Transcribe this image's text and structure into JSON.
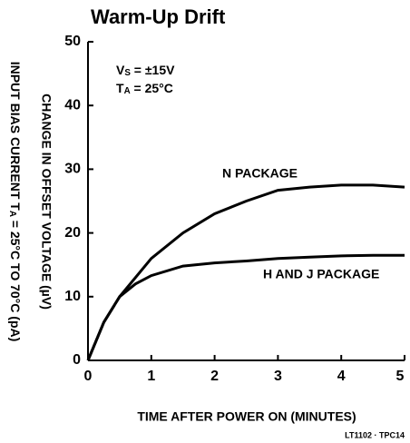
{
  "chart_data": {
    "type": "line",
    "title": "Warm-Up Drift",
    "xlabel": "TIME AFTER POWER ON (MINUTES)",
    "ylabel": "CHANGE IN OFFSET VOLTAGE (µV)",
    "ylabel_outer": {
      "main": "INPUT BIAS CURRENT T",
      "sub": "A",
      "rest": " = 25°C TO 70°C (pA)"
    },
    "annotations": [
      {
        "main": "V",
        "sub": "S",
        "rest": " = ±15V"
      },
      {
        "main": "T",
        "sub": "A",
        "rest": " = 25°C"
      }
    ],
    "footnote": "LT1102 · TPC14",
    "xlim": [
      0,
      5
    ],
    "xticks": [
      0,
      1,
      2,
      3,
      4,
      5
    ],
    "ylim": [
      0,
      50
    ],
    "yticks": [
      0,
      10,
      20,
      30,
      40,
      50
    ],
    "grid": false,
    "series": [
      {
        "name": "N PACKAGE",
        "color": "#000000",
        "x": [
          0,
          0.25,
          0.5,
          1,
          1.5,
          2,
          2.5,
          3,
          3.5,
          4,
          4.5,
          5
        ],
        "values": [
          0,
          6,
          10,
          16,
          20,
          23,
          25,
          26.7,
          27.2,
          27.5,
          27.5,
          27.2
        ]
      },
      {
        "name": "H AND J PACKAGE",
        "color": "#000000",
        "x": [
          0,
          0.25,
          0.5,
          0.75,
          1,
          1.5,
          2,
          2.5,
          3,
          3.5,
          4,
          4.5,
          5
        ],
        "values": [
          0,
          6,
          10,
          12,
          13.3,
          14.8,
          15.3,
          15.6,
          16,
          16.2,
          16.4,
          16.5,
          16.5
        ]
      }
    ]
  }
}
